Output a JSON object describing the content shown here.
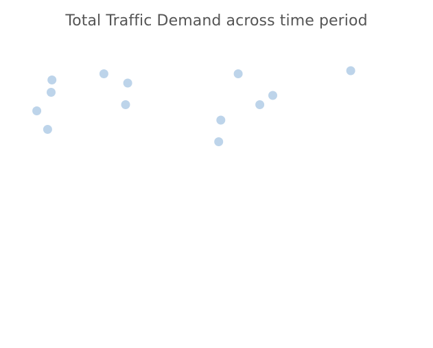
{
  "chart_data": {
    "type": "scatter",
    "title": "Total Traffic Demand across time period",
    "xlabel": "",
    "ylabel": "",
    "grid": false,
    "legend": "none",
    "marker_color": "#bdd4ea",
    "xlim": [
      0,
      100
    ],
    "ylim": [
      0,
      100
    ],
    "points": [
      {
        "x": 12.0,
        "y": 83.0
      },
      {
        "x": 24.0,
        "y": 85.0
      },
      {
        "x": 29.5,
        "y": 82.0
      },
      {
        "x": 11.8,
        "y": 79.0
      },
      {
        "x": 29.0,
        "y": 75.0
      },
      {
        "x": 8.5,
        "y": 73.0
      },
      {
        "x": 11.0,
        "y": 67.0
      },
      {
        "x": 55.0,
        "y": 85.0
      },
      {
        "x": 81.0,
        "y": 86.0
      },
      {
        "x": 63.0,
        "y": 78.0
      },
      {
        "x": 60.0,
        "y": 75.0
      },
      {
        "x": 51.0,
        "y": 70.0
      },
      {
        "x": 50.5,
        "y": 63.0
      }
    ]
  }
}
